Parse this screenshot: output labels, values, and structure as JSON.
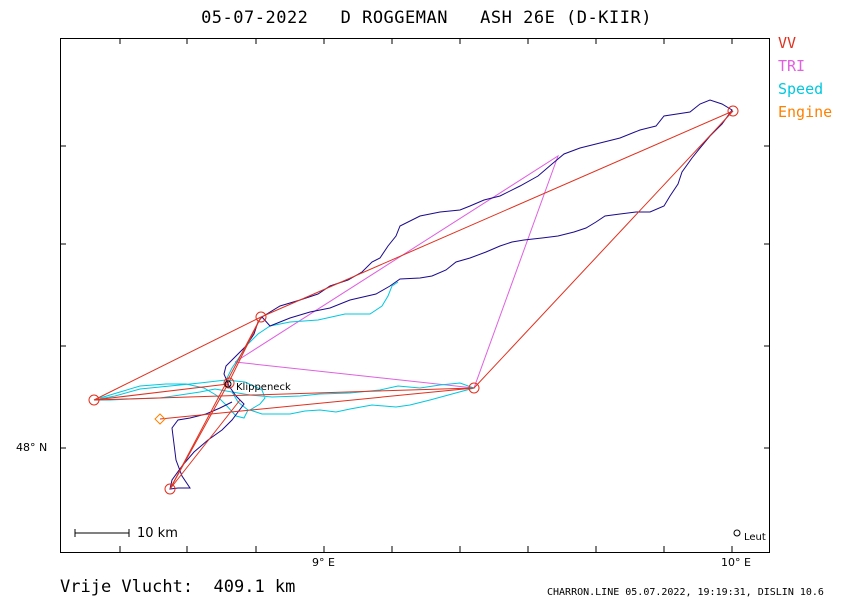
{
  "title": "05-07-2022   D ROGGEMAN   ASH 26E (D-KIIR)",
  "legend": [
    {
      "label": "VV",
      "color": "#e0301e"
    },
    {
      "label": "TRI",
      "color": "#e060e0"
    },
    {
      "label": "Speed",
      "color": "#00c8e0"
    },
    {
      "label": "Engine",
      "color": "#ff8000"
    }
  ],
  "axes": {
    "lat_label": "48° N",
    "lon_labels": [
      "9° E",
      "10° E"
    ]
  },
  "scale": {
    "label": "10  km"
  },
  "waypoints": {
    "klippeneck": "Klippeneck",
    "leut": "Leut"
  },
  "footer": {
    "distance": "Vrije Vlucht:  409.1 km",
    "info": "CHARRON.LINE 05.07.2022, 19:19:31, DISLIN 10.6"
  },
  "colors": {
    "track": "#1a0a8c",
    "vv": "#e0301e",
    "tri": "#e060e0",
    "speed": "#00c8e0",
    "engine": "#ff8000"
  }
}
